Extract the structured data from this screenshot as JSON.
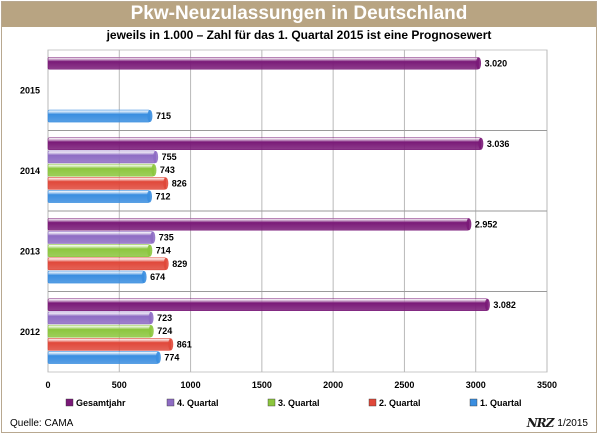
{
  "header": {
    "title": "Pkw-Neuzulassungen in Deutschland",
    "subtitle": "jeweils in 1.000 – Zahl für das 1. Quartal 2015 ist eine Prognosewert"
  },
  "footer": {
    "source": "Quelle: CAMA",
    "logo_text": "NRZ",
    "edition": "1/2015"
  },
  "chart_data": {
    "type": "bar",
    "orientation": "horizontal",
    "title": "Pkw-Neuzulassungen in Deutschland",
    "subtitle": "jeweils in 1.000 – Zahl für das 1. Quartal 2015 ist eine Prognosewert",
    "xlabel": "",
    "ylabel": "",
    "xlim": [
      0,
      3500
    ],
    "xticks": [
      0,
      500,
      1000,
      1500,
      2000,
      2500,
      3000,
      3500
    ],
    "grid": "vertical",
    "legend_position": "bottom",
    "categories": [
      "2015",
      "2014",
      "2013",
      "2012"
    ],
    "series": [
      {
        "name": "Gesamtjahr",
        "color": "#7a1a78",
        "values": [
          3020,
          3036,
          2952,
          3082
        ],
        "labels": [
          "3.020",
          "3.036",
          "2.952",
          "3.082"
        ]
      },
      {
        "name": "4. Quartal",
        "color": "#8e6cc4",
        "values": [
          null,
          755,
          735,
          723
        ],
        "labels": [
          "",
          "755",
          "735",
          "723"
        ]
      },
      {
        "name": "3. Quartal",
        "color": "#8cc63e",
        "values": [
          null,
          743,
          714,
          724
        ],
        "labels": [
          "",
          "743",
          "714",
          "724"
        ]
      },
      {
        "name": "2. Quartal",
        "color": "#e0483a",
        "values": [
          null,
          826,
          829,
          861
        ],
        "labels": [
          "",
          "826",
          "829",
          "861"
        ]
      },
      {
        "name": "1. Quartal",
        "color": "#3a8ee0",
        "values": [
          715,
          712,
          674,
          774
        ],
        "labels": [
          "715",
          "712",
          "674",
          "774"
        ]
      }
    ]
  }
}
